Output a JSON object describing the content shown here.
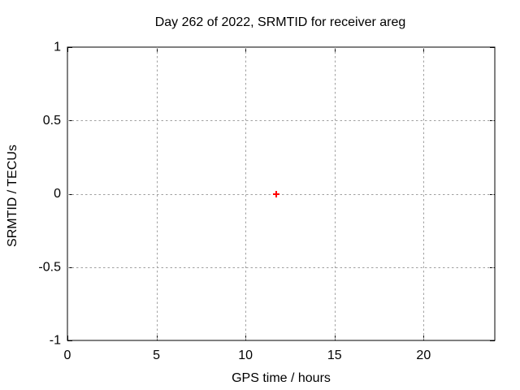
{
  "chart_data": {
    "type": "scatter",
    "title": "Day 262 of 2022, SRMTID for receiver areg",
    "xlabel": "GPS time / hours",
    "ylabel": "SRMTID / TECUs",
    "xlim": [
      0,
      24
    ],
    "ylim": [
      -1,
      1
    ],
    "xticks": [
      0,
      5,
      10,
      15,
      20
    ],
    "xtick_labels": [
      "0",
      "5",
      "10",
      "15",
      "20"
    ],
    "yticks": [
      -1,
      -0.5,
      0,
      0.5,
      1
    ],
    "ytick_labels": [
      "-1",
      "-0.5",
      "0",
      "0.5",
      "1"
    ],
    "grid": true,
    "legend": "none",
    "series": [
      {
        "name": "SRMTID",
        "marker": "plus",
        "color": "#ff0000",
        "points": [
          {
            "x": 11.72,
            "y": 0.0
          }
        ]
      }
    ]
  },
  "style": {
    "background": "#ffffff",
    "axis_color": "#000000",
    "grid_color": "#a0a0a0",
    "text_color": "#000000"
  }
}
